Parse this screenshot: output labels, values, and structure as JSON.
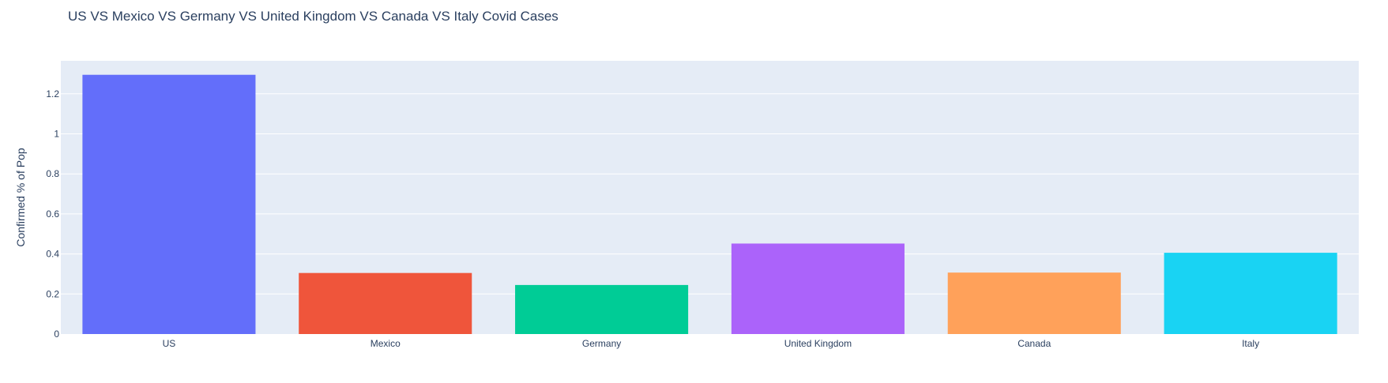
{
  "chart_data": {
    "type": "bar",
    "title": "US VS Mexico VS Germany VS United Kingdom VS Canada VS Italy Covid Cases",
    "xlabel": "",
    "ylabel": "Confirmed % of Pop",
    "categories": [
      "US",
      "Mexico",
      "Germany",
      "United Kingdom",
      "Canada",
      "Italy"
    ],
    "values": [
      1.295,
      0.305,
      0.245,
      0.452,
      0.307,
      0.406
    ],
    "colors": [
      "#636efa",
      "#EF553B",
      "#00cc96",
      "#ab63fa",
      "#FFA15A",
      "#19d3f3"
    ],
    "ylim": [
      0,
      1.3649
    ],
    "yticks": [
      0,
      0.2,
      0.4,
      0.6,
      0.8,
      1,
      1.2
    ],
    "ytick_labels": [
      "0",
      "0.2",
      "0.4",
      "0.6",
      "0.8",
      "1",
      "1.2"
    ],
    "grid": true,
    "legend": "none",
    "plot_bgcolor": "#e5ecf6",
    "gridcolor": "#ffffff",
    "text_color": "#2a3f5f"
  }
}
